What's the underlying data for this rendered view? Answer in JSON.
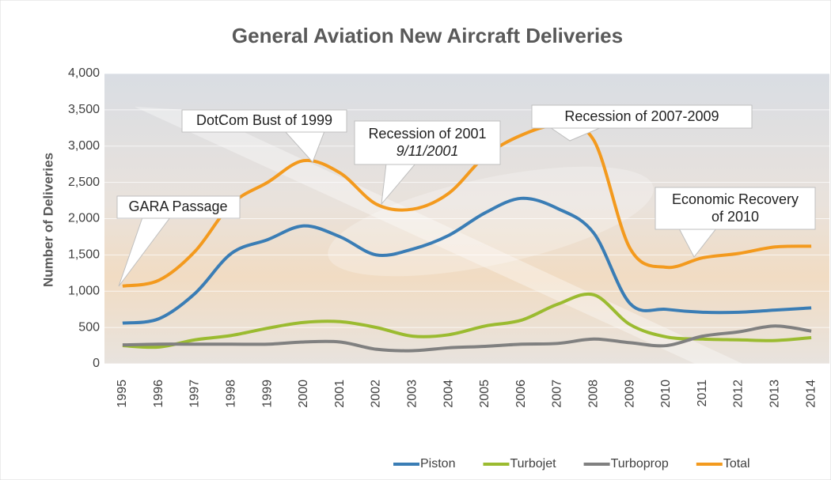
{
  "chart_data": {
    "type": "line",
    "title": "General Aviation New Aircraft Deliveries",
    "y_label": "Number of Deliveries",
    "categories": [
      "1995",
      "1996",
      "1997",
      "1998",
      "1999",
      "2000",
      "2001",
      "2002",
      "2003",
      "2004",
      "2005",
      "2006",
      "2007",
      "2008",
      "2009",
      "2010",
      "2011",
      "2012",
      "2013",
      "2014"
    ],
    "series": [
      {
        "name": "Piston",
        "color": "#3a7db5",
        "values": [
          560,
          620,
          970,
          1520,
          1710,
          1900,
          1750,
          1500,
          1580,
          1770,
          2080,
          2280,
          2140,
          1800,
          830,
          750,
          710,
          710,
          740,
          770
        ]
      },
      {
        "name": "Turbojet",
        "color": "#9bbb30",
        "values": [
          250,
          230,
          330,
          390,
          490,
          570,
          580,
          500,
          380,
          400,
          520,
          600,
          820,
          950,
          540,
          370,
          340,
          330,
          320,
          360
        ]
      },
      {
        "name": "Turboprop",
        "color": "#808080",
        "values": [
          260,
          270,
          270,
          270,
          270,
          300,
          300,
          200,
          180,
          220,
          240,
          270,
          280,
          340,
          290,
          250,
          380,
          440,
          520,
          450
        ]
      },
      {
        "name": "Total",
        "color": "#f39a1e",
        "values": [
          1070,
          1150,
          1550,
          2200,
          2500,
          2800,
          2630,
          2200,
          2130,
          2350,
          2860,
          3150,
          3280,
          3080,
          1590,
          1330,
          1460,
          1520,
          1610,
          1620
        ]
      }
    ],
    "ylim": [
      0,
      4000
    ],
    "yticks": [
      0,
      500,
      {
        "value": 1000,
        "label": "1,000"
      },
      {
        "value": 1500,
        "label": "1,500"
      },
      {
        "value": 2000,
        "label": "2,000"
      },
      {
        "value": 2500,
        "label": "2,500"
      },
      {
        "value": 3000,
        "label": "3,000"
      },
      {
        "value": 3500,
        "label": "3,500"
      },
      {
        "value": 4000,
        "label": "4,000"
      }
    ],
    "grid": true,
    "legend": "bottom",
    "annotations": [
      {
        "lines": [
          "GARA Passage"
        ]
      },
      {
        "lines": [
          "DotCom Bust of 1999"
        ]
      },
      {
        "lines": [
          "Recession of 2001",
          "9/11/2001"
        ]
      },
      {
        "lines": [
          "Recession of 2007-2009"
        ]
      },
      {
        "lines": [
          "Economic Recovery",
          "of 2010"
        ]
      }
    ]
  }
}
